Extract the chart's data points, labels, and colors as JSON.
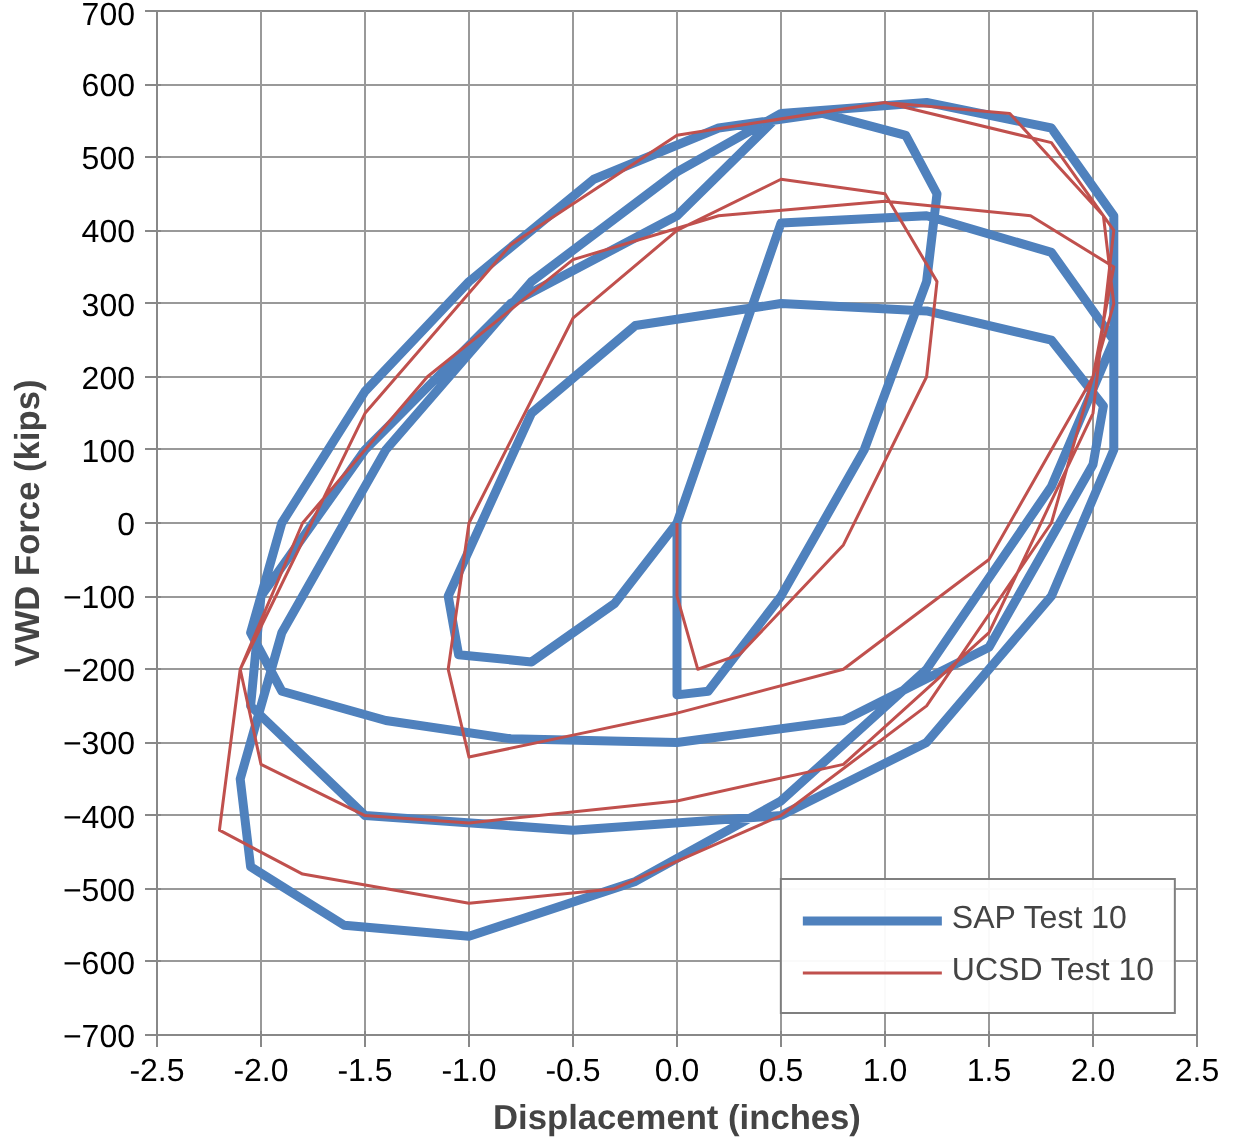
{
  "chart_data": {
    "type": "line",
    "xlabel": "Displacement (inches)",
    "ylabel": "VWD Force (kips)",
    "xlim": [
      -2.5,
      2.5
    ],
    "xticks": [
      {
        "value": -2.5,
        "label": "-2.5"
      },
      {
        "value": -2,
        "label": "-2.0"
      },
      {
        "value": -1.5,
        "label": "-1.5"
      },
      {
        "value": -1,
        "label": "-1.0"
      },
      {
        "value": -0.5,
        "label": "-0.5"
      },
      {
        "value": 0,
        "label": "0.0"
      },
      {
        "value": 0.5,
        "label": "0.5"
      },
      {
        "value": 1,
        "label": "1.0"
      },
      {
        "value": 1.5,
        "label": "1.5"
      },
      {
        "value": 2,
        "label": "2.0"
      },
      {
        "value": 2.5,
        "label": "2.5"
      }
    ],
    "ylim": [
      -700,
      700
    ],
    "yticks": [
      -700,
      -600,
      -500,
      -400,
      -300,
      -200,
      -100,
      0,
      100,
      200,
      300,
      400,
      500,
      600,
      700
    ],
    "grid": true,
    "legend": "bottom right",
    "marker": "none",
    "line_style": "solid",
    "series": [
      {
        "name": "SAP Test 10",
        "color": "#4f81bd",
        "x": [
          0,
          0,
          0.15,
          0.5,
          0.9,
          1.2,
          1.25,
          1.1,
          0.7,
          0.2,
          -0.4,
          -1.0,
          -1.5,
          -1.9,
          -2.05,
          -1.9,
          -1.4,
          -0.8,
          0,
          0.8,
          1.5,
          2.0,
          2.05,
          1.8,
          1.2,
          0.5,
          -0.2,
          -0.7,
          -1.1,
          -1.05,
          -0.7,
          -0.3,
          0,
          0.5,
          1.2,
          1.8,
          2.1,
          2.1,
          1.8,
          1.2,
          0.5,
          -0.5,
          -1.5,
          -2.05,
          -2.0,
          -1.5,
          -0.8,
          0,
          0.5,
          1.2,
          1.8,
          2.1,
          2.1,
          1.8,
          1.2,
          0.5,
          -0.2,
          -1.0,
          -1.6,
          -2.05,
          -2.1,
          -1.9,
          -1.4,
          -0.7,
          0,
          0.5
        ],
        "values": [
          0,
          -235,
          -230,
          -100,
          100,
          330,
          450,
          530,
          560,
          540,
          470,
          330,
          180,
          0,
          -150,
          -230,
          -270,
          -295,
          -300,
          -270,
          -170,
          80,
          160,
          250,
          290,
          300,
          270,
          150,
          -100,
          -180,
          -190,
          -110,
          0,
          410,
          420,
          370,
          250,
          100,
          -100,
          -300,
          -400,
          -420,
          -400,
          -250,
          -100,
          100,
          300,
          420,
          560,
          575,
          540,
          420,
          250,
          50,
          -200,
          -380,
          -490,
          -565,
          -550,
          -470,
          -350,
          -150,
          100,
          330,
          480,
          560
        ]
      },
      {
        "name": "UCSD Test 10",
        "color": "#c0504d",
        "x": [
          0,
          0,
          0.1,
          0.3,
          0.8,
          1.2,
          1.25,
          1.0,
          0.5,
          0,
          -0.5,
          -1.0,
          -1.1,
          -1.0,
          -0.5,
          0,
          0.8,
          1.5,
          2.0,
          2.1,
          1.7,
          1.0,
          0.2,
          -0.5,
          -1.2,
          -1.8,
          -2.1,
          -2.0,
          -1.5,
          -1.0,
          0,
          0.8,
          1.5,
          2.0,
          2.1,
          1.8,
          1.0,
          0,
          -0.8,
          -1.5,
          -2.1,
          -2.2,
          -1.8,
          -1.0,
          -0.3,
          0.5,
          1.2,
          1.8,
          2.1,
          2.05,
          1.6,
          1.0,
          0
        ],
        "values": [
          0,
          -100,
          -200,
          -180,
          -30,
          200,
          330,
          450,
          470,
          400,
          280,
          0,
          -200,
          -320,
          -290,
          -260,
          -200,
          -50,
          200,
          350,
          420,
          440,
          420,
          360,
          200,
          0,
          -200,
          -330,
          -400,
          -410,
          -380,
          -330,
          -150,
          150,
          400,
          520,
          575,
          530,
          380,
          150,
          -200,
          -420,
          -480,
          -520,
          -500,
          -400,
          -250,
          0,
          300,
          420,
          560,
          575,
          530
        ]
      }
    ]
  }
}
